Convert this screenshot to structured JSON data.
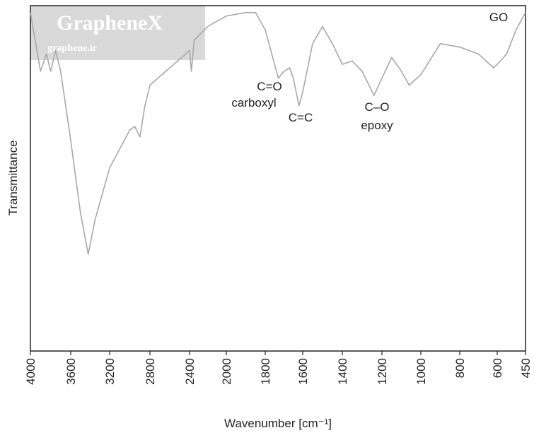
{
  "chart_data": {
    "type": "line",
    "xlabel": "Wavenumber [cm⁻¹]",
    "ylabel": "Transmittance",
    "x": [
      4000,
      3900,
      3840,
      3800,
      3750,
      3700,
      3600,
      3500,
      3420,
      3350,
      3200,
      3000,
      2950,
      2900,
      2850,
      2800,
      2600,
      2400,
      2380,
      2350,
      2200,
      2000,
      1900,
      1850,
      1800,
      1760,
      1730,
      1700,
      1670,
      1650,
      1620,
      1600,
      1550,
      1500,
      1450,
      1400,
      1350,
      1300,
      1240,
      1200,
      1150,
      1100,
      1060,
      1000,
      900,
      800,
      700,
      620,
      600,
      550,
      500,
      450
    ],
    "series": [
      {
        "name": "GO",
        "color": "#a8a8a8",
        "values": [
          98,
          81,
          86,
          81,
          87,
          81,
          61,
          40,
          28,
          38,
          53,
          64,
          65,
          62,
          71,
          77,
          82,
          87,
          81,
          90,
          94,
          97,
          98,
          98,
          93,
          85,
          79,
          81,
          82,
          79,
          71,
          75,
          89,
          94,
          89,
          83,
          84,
          81,
          74,
          79,
          85,
          81,
          77,
          80,
          89,
          88,
          86,
          82,
          83,
          86,
          93,
          98
        ]
      }
    ],
    "xlim": [
      4000,
      450
    ],
    "ylim": [
      0,
      100
    ],
    "xticks": [
      4000,
      3600,
      3200,
      2800,
      2400,
      2000,
      1800,
      1600,
      1400,
      1200,
      1000,
      800,
      600,
      450
    ],
    "annotations": [
      "GO",
      "C=O",
      "carboxyl",
      "C=C",
      "C–O",
      "epoxy"
    ]
  },
  "watermark": {
    "title": "GrapheneX",
    "url": "graphene.ir"
  }
}
